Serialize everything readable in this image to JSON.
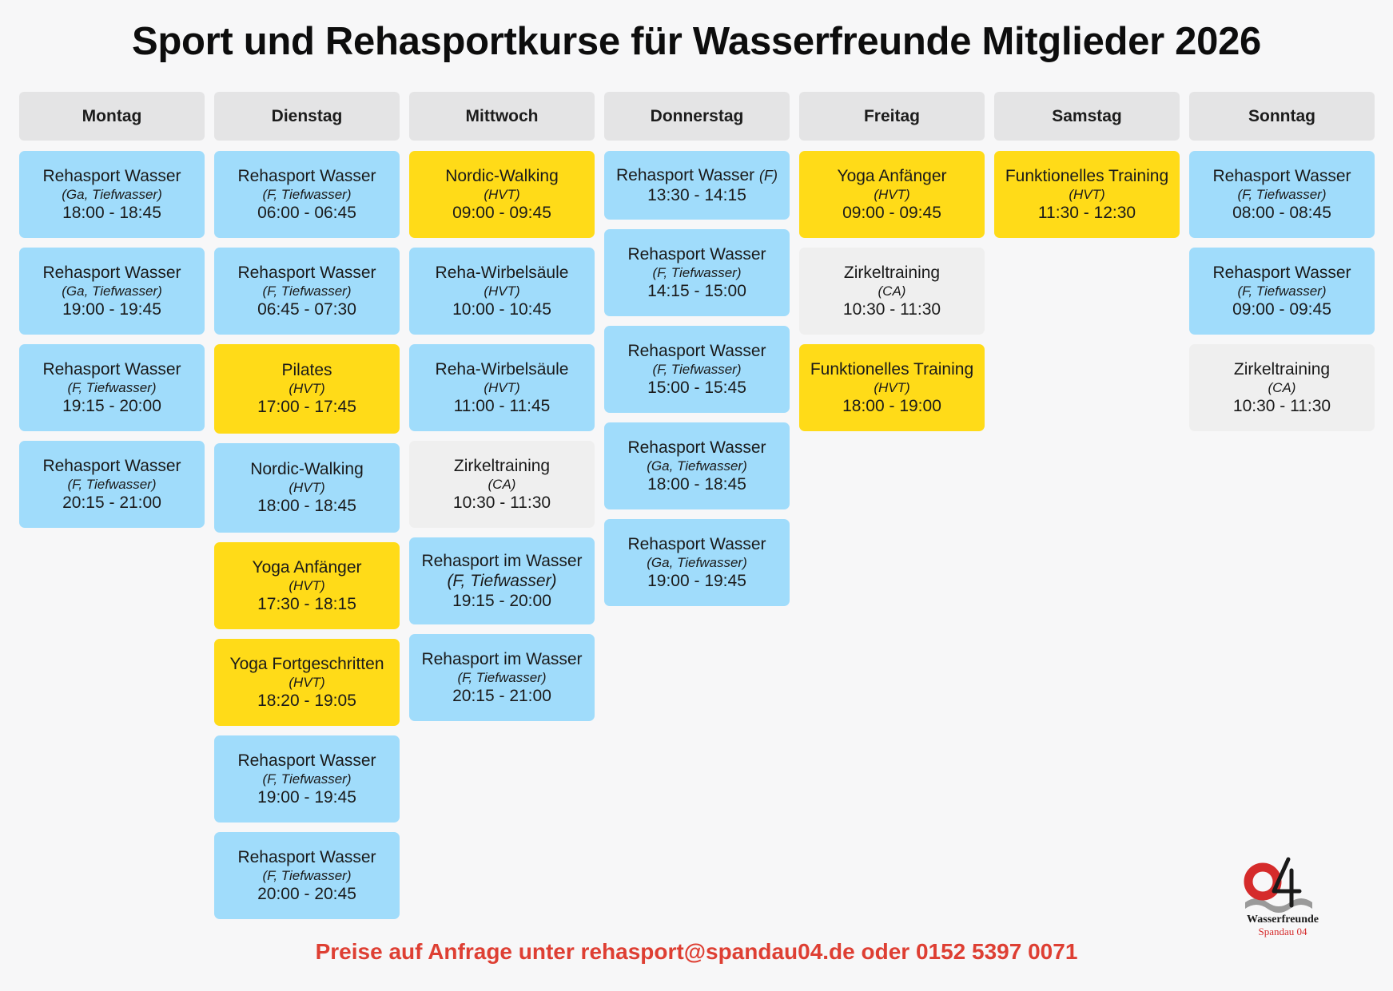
{
  "title": "Sport und Rehasportkurse für Wasserfreunde Mitglieder 2026",
  "footer": "Preise auf Anfrage unter rehasport@spandau04.de oder 0152 5397 0071",
  "logo": {
    "line1": "Wasserfreunde",
    "line2": "Spandau 04",
    "number": "04"
  },
  "colors": {
    "blue": "#a0dcfb",
    "yellow": "#ffdb18",
    "gray": "#efefef",
    "footer": "#de3f33"
  },
  "days": [
    {
      "label": "Montag",
      "courses": [
        {
          "name": "Rehasport Wasser",
          "loc": "(Ga, Tiefwasser)",
          "time": "18:00 - 18:45",
          "color": "blue"
        },
        {
          "name": "Rehasport Wasser",
          "loc": "(Ga, Tiefwasser)",
          "time": "19:00 - 19:45",
          "color": "blue"
        },
        {
          "name": "Rehasport Wasser",
          "loc": "(F, Tiefwasser)",
          "time": "19:15 - 20:00",
          "color": "blue"
        },
        {
          "name": "Rehasport Wasser",
          "loc": "(F, Tiefwasser)",
          "time": "20:15 - 21:00",
          "color": "blue"
        }
      ]
    },
    {
      "label": "Dienstag",
      "courses": [
        {
          "name": "Rehasport Wasser",
          "loc": "(F, Tiefwasser)",
          "time": "06:00 - 06:45",
          "color": "blue"
        },
        {
          "name": "Rehasport Wasser",
          "loc": "(F, Tiefwasser)",
          "time": "06:45 - 07:30",
          "color": "blue"
        },
        {
          "name": "Pilates",
          "loc": "(HVT)",
          "time": "17:00 - 17:45",
          "color": "yellow"
        },
        {
          "name": "Nordic-Walking",
          "loc": "(HVT)",
          "time": "18:00 - 18:45",
          "color": "blue"
        },
        {
          "name": "Yoga Anfänger",
          "loc": "(HVT)",
          "time": "17:30 - 18:15",
          "color": "yellow"
        },
        {
          "name": "Yoga Fortgeschritten",
          "loc": "(HVT)",
          "time": "18:20 - 19:05",
          "color": "yellow"
        },
        {
          "name": "Rehasport Wasser",
          "loc": "(F, Tiefwasser)",
          "time": "19:00 - 19:45",
          "color": "blue"
        },
        {
          "name": "Rehasport Wasser",
          "loc": "(F, Tiefwasser)",
          "time": "20:00 - 20:45",
          "color": "blue"
        }
      ]
    },
    {
      "label": "Mittwoch",
      "courses": [
        {
          "name": "Nordic-Walking",
          "loc": "(HVT)",
          "time": "09:00 - 09:45",
          "color": "yellow"
        },
        {
          "name": "Reha-Wirbelsäule",
          "loc": "(HVT)",
          "time": "10:00 - 10:45",
          "color": "blue"
        },
        {
          "name": "Reha-Wirbelsäule",
          "loc": "(HVT)",
          "time": "11:00 - 11:45",
          "color": "blue"
        },
        {
          "name": "Zirkeltraining",
          "loc": "(CA)",
          "time": "10:30 - 11:30",
          "color": "gray"
        },
        {
          "name": "Rehasport im Wasser",
          "loc": "(F, Tiefwasser)",
          "time": "19:15 - 20:00",
          "color": "blue",
          "bigloc": true
        },
        {
          "name": "Rehasport im Wasser",
          "loc": "(F, Tiefwasser)",
          "time": "20:15 - 21:00",
          "color": "blue"
        }
      ]
    },
    {
      "label": "Donnerstag",
      "courses": [
        {
          "name": "Rehasport Wasser",
          "inline": "(F)",
          "time": "13:30 - 14:15",
          "color": "blue"
        },
        {
          "name": "Rehasport Wasser",
          "loc": "(F, Tiefwasser)",
          "time": "14:15 - 15:00",
          "color": "blue"
        },
        {
          "name": "Rehasport Wasser",
          "loc": "(F, Tiefwasser)",
          "time": "15:00 - 15:45",
          "color": "blue"
        },
        {
          "name": "Rehasport Wasser",
          "loc": "(Ga, Tiefwasser)",
          "time": "18:00 - 18:45",
          "color": "blue"
        },
        {
          "name": "Rehasport Wasser",
          "loc": "(Ga, Tiefwasser)",
          "time": "19:00 - 19:45",
          "color": "blue"
        }
      ]
    },
    {
      "label": "Freitag",
      "courses": [
        {
          "name": "Yoga Anfänger",
          "loc": "(HVT)",
          "time": "09:00 - 09:45",
          "color": "yellow"
        },
        {
          "name": "Zirkeltraining",
          "loc": "(CA)",
          "time": "10:30 - 11:30",
          "color": "gray"
        },
        {
          "name": "Funktionelles Training",
          "loc": "(HVT)",
          "time": "18:00 - 19:00",
          "color": "yellow"
        }
      ]
    },
    {
      "label": "Samstag",
      "courses": [
        {
          "name": "Funktionelles Training",
          "loc": "(HVT)",
          "time": "11:30 - 12:30",
          "color": "yellow"
        }
      ]
    },
    {
      "label": "Sonntag",
      "courses": [
        {
          "name": "Rehasport Wasser",
          "loc": "(F, Tiefwasser)",
          "time": "08:00 - 08:45",
          "color": "blue"
        },
        {
          "name": "Rehasport Wasser",
          "loc": "(F, Tiefwasser)",
          "time": "09:00 - 09:45",
          "color": "blue"
        },
        {
          "name": "Zirkeltraining",
          "loc": "(CA)",
          "time": "10:30 - 11:30",
          "color": "gray"
        }
      ]
    }
  ]
}
